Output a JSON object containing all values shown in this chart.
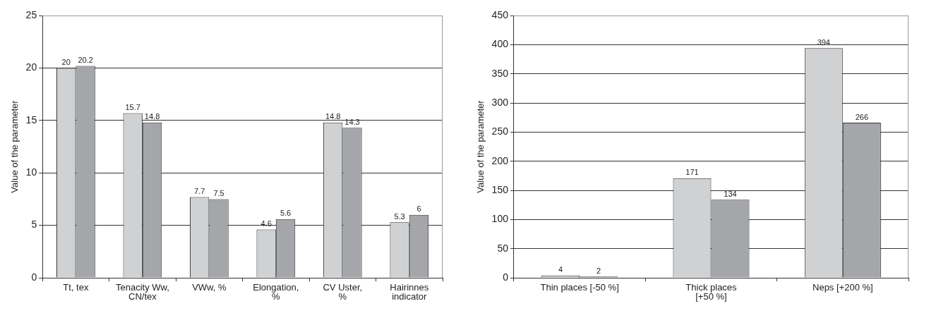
{
  "chart_data": [
    {
      "type": "bar",
      "ylabel": "Value of the parameter",
      "categories": [
        "Tt, tex",
        "Tenacity Ww, CN/tex",
        "VWw, %",
        "Elongation, %",
        "CV Uster, %",
        "Hairinnes indicator"
      ],
      "series": [
        {
          "color": "#d0d1d3",
          "values": [
            20,
            15.7,
            7.7,
            4.6,
            14.8,
            5.3
          ]
        },
        {
          "color": "#a5a6a9",
          "values": [
            20.2,
            14.8,
            7.5,
            5.6,
            14.3,
            6
          ]
        }
      ],
      "ylim": [
        0,
        25
      ],
      "yticks": [
        0,
        5,
        10,
        15,
        20,
        25
      ],
      "grid": "y",
      "data_labels": true
    },
    {
      "type": "bar",
      "ylabel": "Value of the parameter",
      "categories": [
        "Thin places [-50 %]",
        "Thick places [+50 %]",
        "Neps [+200 %]"
      ],
      "series": [
        {
          "color": "#d0d1d3",
          "values": [
            4,
            171,
            394
          ]
        },
        {
          "color": "#a5a6a9",
          "values": [
            2,
            134,
            266
          ]
        }
      ],
      "ylim": [
        0,
        450
      ],
      "yticks": [
        0,
        50,
        100,
        150,
        200,
        250,
        300,
        350,
        400,
        450
      ],
      "grid": "y",
      "data_labels": true
    }
  ]
}
